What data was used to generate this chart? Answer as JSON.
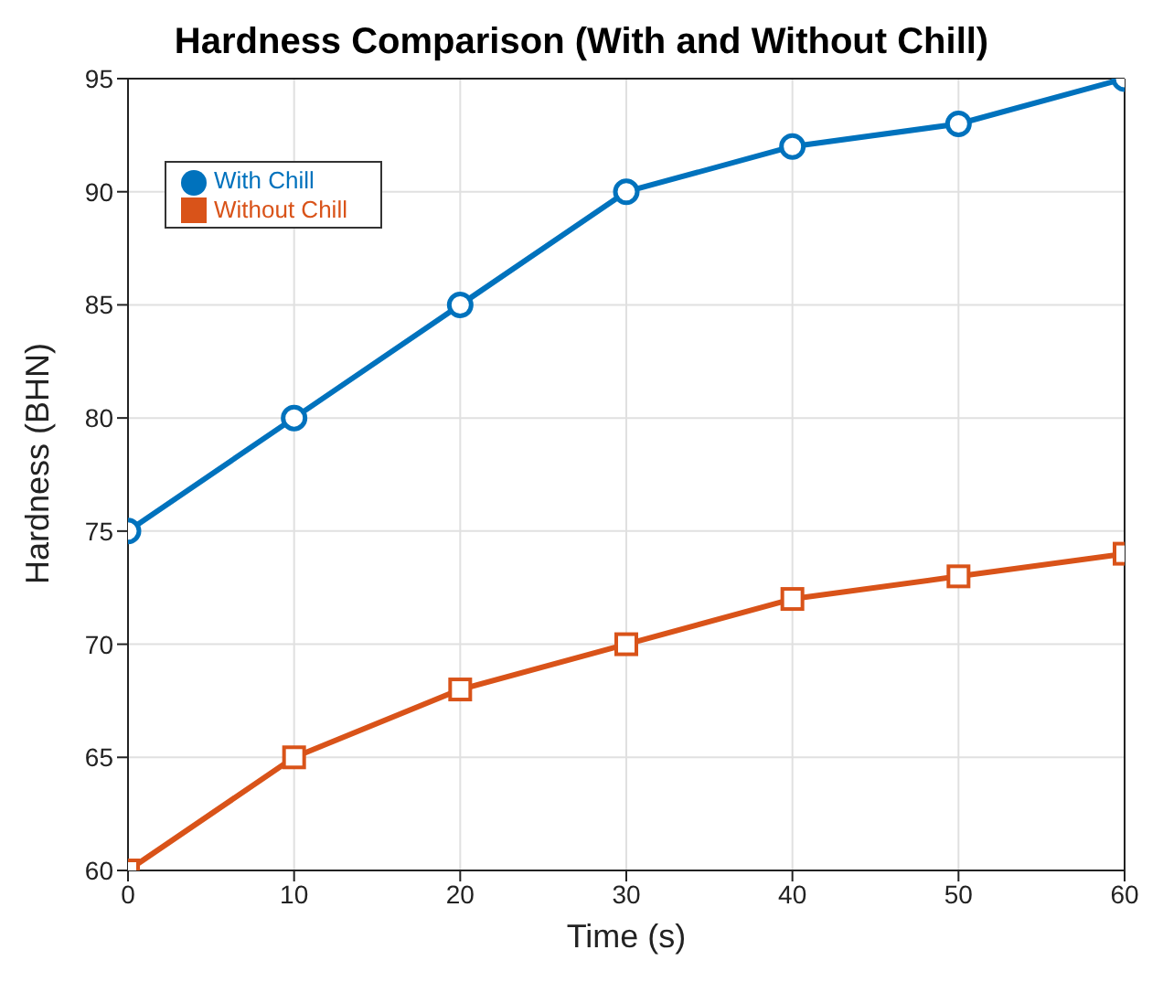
{
  "chart_data": {
    "type": "line",
    "title": "Hardness Comparison (With and Without Chill)",
    "xlabel": "Time (s)",
    "ylabel": "Hardness (BHN)",
    "x": [
      0,
      10,
      20,
      30,
      40,
      50,
      60
    ],
    "series": [
      {
        "name": "With Chill",
        "color": "#0072bd",
        "marker": "circle",
        "values": [
          75,
          80,
          85,
          90,
          92,
          93,
          95
        ]
      },
      {
        "name": "Without Chill",
        "color": "#d95319",
        "marker": "square",
        "values": [
          60,
          65,
          68,
          70,
          72,
          73,
          74
        ]
      }
    ],
    "xlim": [
      0,
      60
    ],
    "xticks": [
      0,
      10,
      20,
      30,
      40,
      50,
      60
    ],
    "ylim": [
      60,
      95
    ],
    "yticks": [
      60,
      65,
      70,
      75,
      80,
      85,
      90,
      95
    ],
    "grid": true,
    "legend": "top left",
    "line_style": "solid"
  }
}
